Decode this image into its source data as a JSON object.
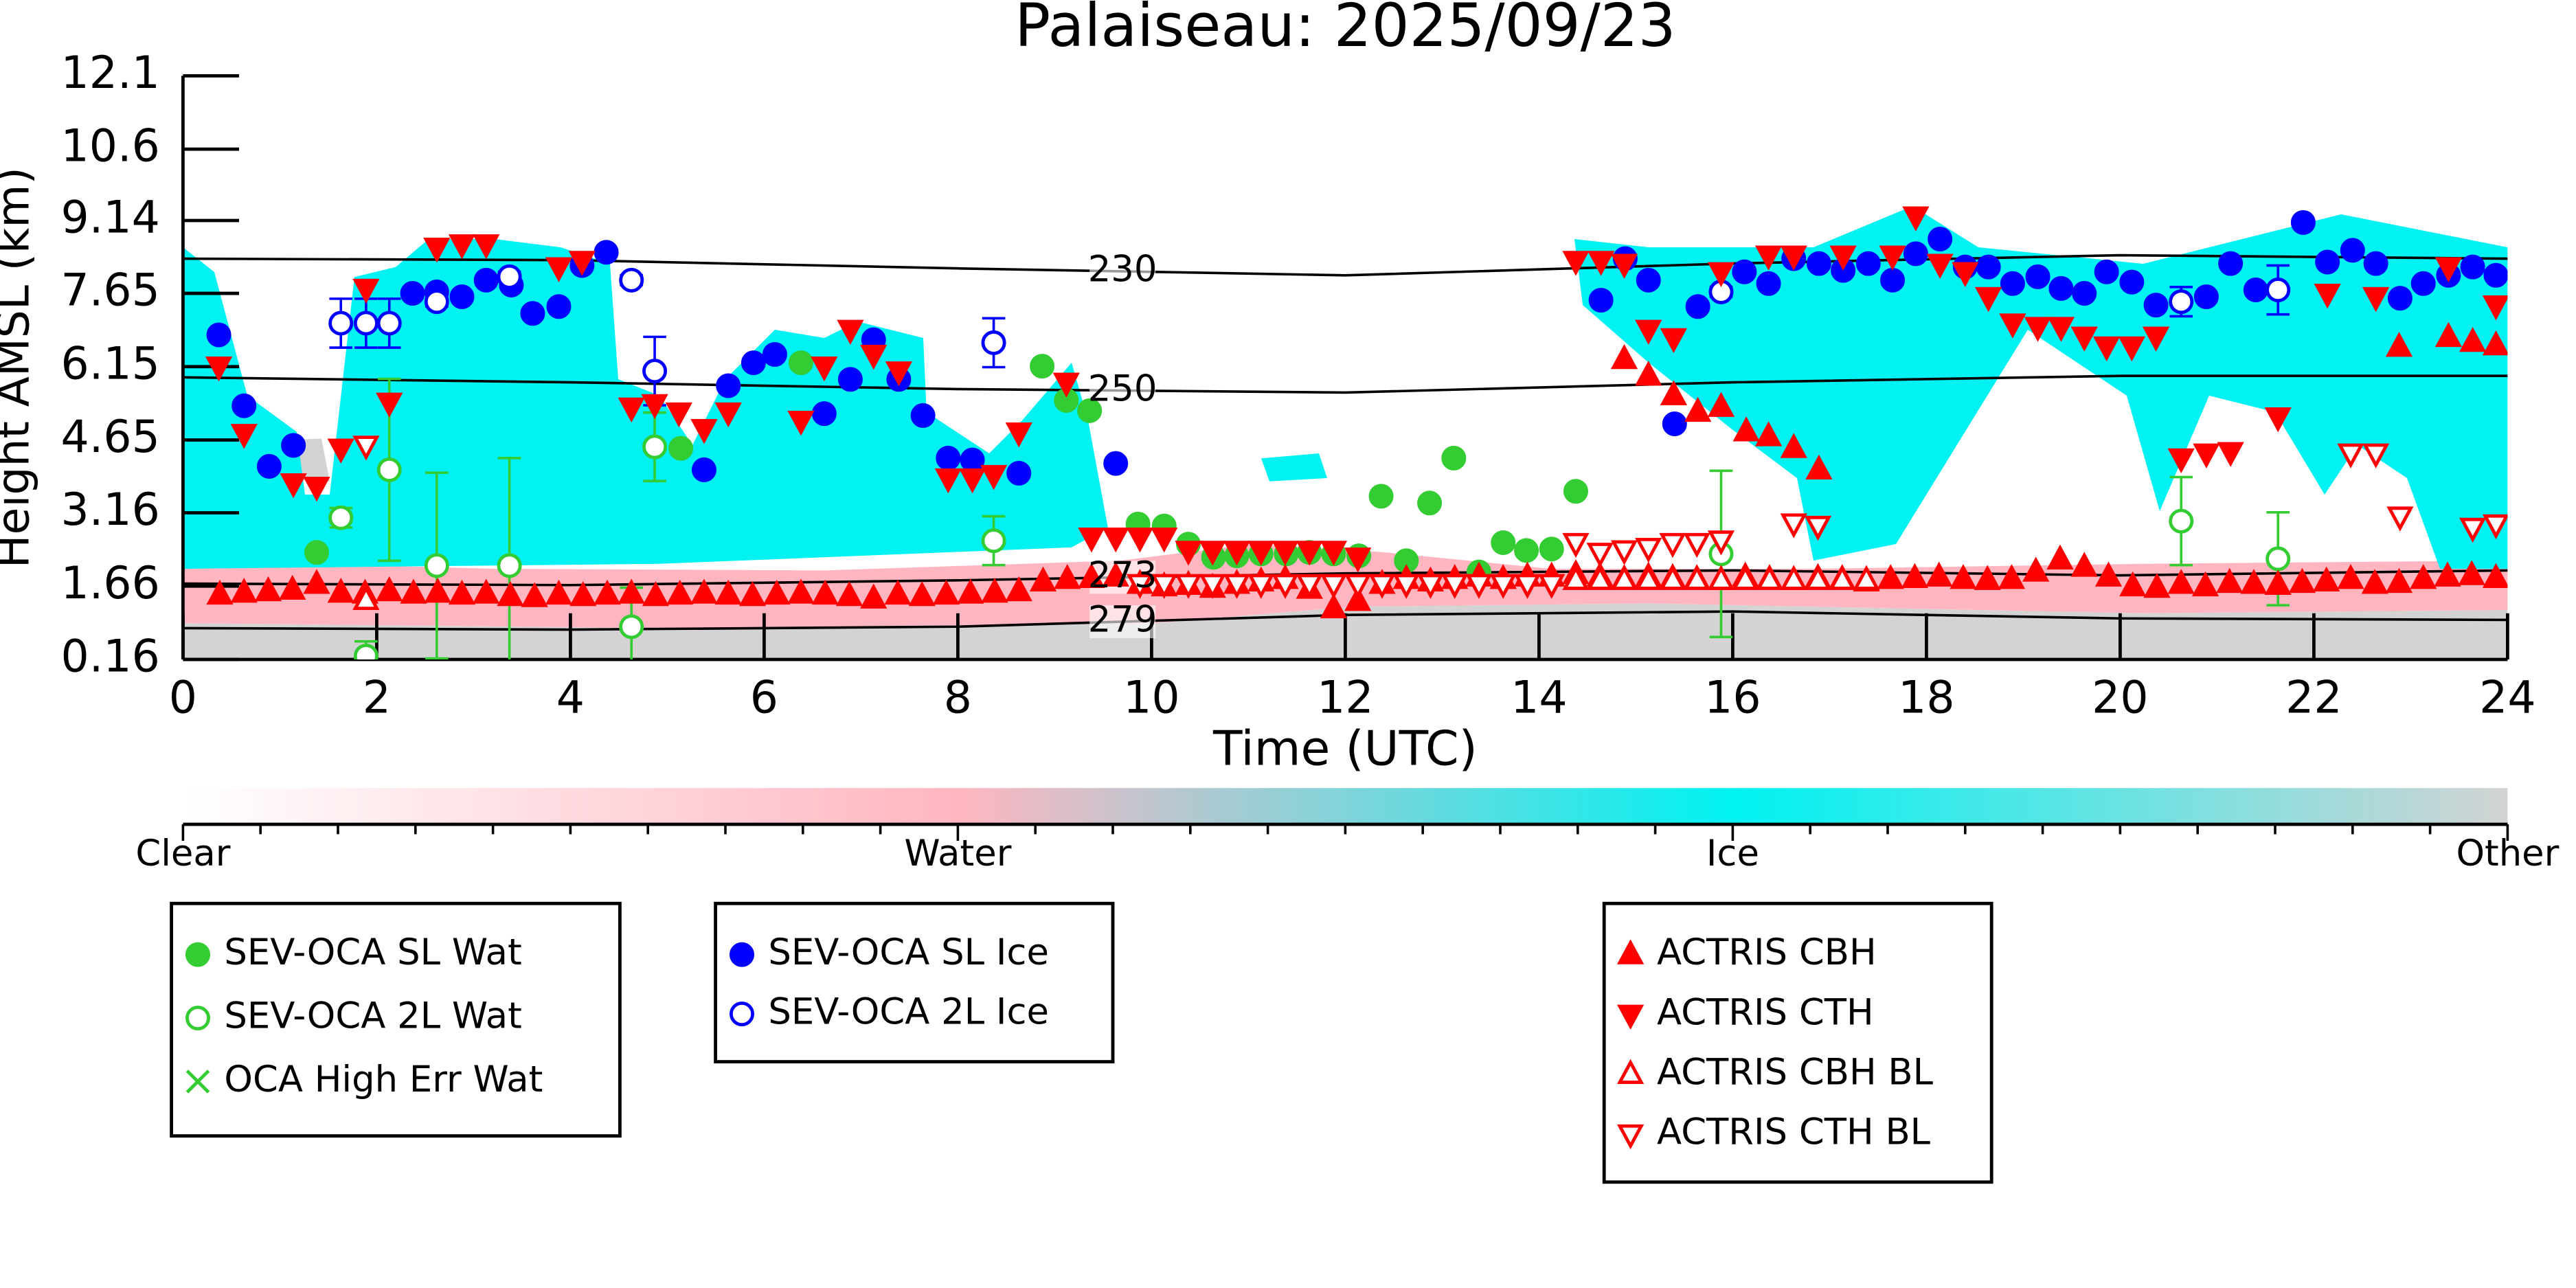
{
  "chart_data": {
    "type": "scatter",
    "title": "Palaiseau: 2025/09/23",
    "xlabel": "Time (UTC)",
    "ylabel": "Height AMSL (km)",
    "xlim": [
      0,
      24
    ],
    "ylim": [
      0.16,
      12.1
    ],
    "xticks": [
      0,
      2,
      4,
      6,
      8,
      10,
      12,
      14,
      16,
      18,
      20,
      22,
      24
    ],
    "yticks": [
      0.16,
      1.66,
      3.16,
      4.65,
      6.15,
      7.65,
      9.14,
      10.6,
      12.1
    ],
    "colorbar": {
      "labels": [
        "Clear",
        "Water",
        "Ice",
        "Other"
      ],
      "colors": [
        "#ffffff",
        "#ffb6c1",
        "#00f2f2",
        "#d3d3d3"
      ]
    },
    "contours": [
      {
        "label": "230",
        "x": [
          0,
          4,
          8,
          12,
          16,
          20,
          24
        ],
        "y": [
          8.36,
          8.33,
          8.16,
          8.02,
          8.26,
          8.43,
          8.36
        ]
      },
      {
        "label": "250",
        "x": [
          0,
          4,
          8,
          12,
          16,
          20,
          24
        ],
        "y": [
          5.93,
          5.83,
          5.69,
          5.62,
          5.83,
          5.96,
          5.96
        ]
      },
      {
        "label": "273",
        "x": [
          0,
          4,
          8,
          12,
          16,
          20,
          24
        ],
        "y": [
          1.71,
          1.68,
          1.78,
          1.92,
          1.98,
          1.88,
          1.98
        ]
      },
      {
        "label": "279",
        "x": [
          0,
          4,
          8,
          12,
          16,
          20,
          24
        ],
        "y": [
          0.8,
          0.77,
          0.83,
          1.07,
          1.14,
          1.0,
          0.97
        ]
      }
    ],
    "series": [
      {
        "name": "SEV-OCA SL Wat",
        "color": "#33cc33",
        "marker": "circle",
        "x": [
          1.38,
          5.14,
          6.38,
          8.87,
          9.12,
          9.36,
          9.86,
          10.13,
          10.38,
          10.64,
          10.88,
          11.13,
          11.39,
          11.63,
          11.88,
          12.14,
          12.37,
          12.63,
          12.87,
          13.12,
          13.38,
          13.63,
          13.87,
          14.13,
          14.38
        ],
        "y": [
          2.35,
          4.48,
          6.23,
          6.16,
          5.46,
          5.25,
          2.93,
          2.89,
          2.52,
          2.25,
          2.28,
          2.32,
          2.32,
          2.35,
          2.32,
          2.28,
          3.5,
          2.18,
          3.36,
          4.28,
          1.95,
          2.55,
          2.39,
          2.42,
          3.6
        ]
      },
      {
        "name": "SEV-OCA 2L Wat",
        "color": "#33cc33",
        "marker": "open-circle",
        "x": [
          1.63,
          1.89,
          2.13,
          2.62,
          3.37,
          4.63,
          4.87,
          8.37,
          15.88,
          20.63,
          21.63
        ],
        "y": [
          3.06,
          0.23,
          4.04,
          2.08,
          2.08,
          0.83,
          4.51,
          2.59,
          2.32,
          2.99,
          2.22
        ],
        "yerr": [
          0.2,
          0.3,
          1.86,
          1.9,
          2.2,
          0.8,
          0.7,
          0.5,
          1.7,
          0.9,
          0.95
        ]
      },
      {
        "name": "OCA High Err Wat",
        "color": "#33cc33",
        "marker": "x",
        "x": [],
        "y": []
      },
      {
        "name": "SEV-OCA SL Ice",
        "color": "#0000ff",
        "marker": "circle",
        "x": [
          0.37,
          0.63,
          0.89,
          1.14,
          2.37,
          2.62,
          2.88,
          3.13,
          3.39,
          3.61,
          3.88,
          4.12,
          4.37,
          5.38,
          5.63,
          5.89,
          6.11,
          6.62,
          6.89,
          7.13,
          7.39,
          7.64,
          7.9,
          8.15,
          8.63,
          9.63,
          14.64,
          14.89,
          15.13,
          15.4,
          15.64,
          16.12,
          16.37,
          16.63,
          16.89,
          17.14,
          17.4,
          17.65,
          17.89,
          18.14,
          18.4,
          18.64,
          18.89,
          19.15,
          19.39,
          19.63,
          19.86,
          20.12,
          20.37,
          20.89,
          21.14,
          21.4,
          21.89,
          22.14,
          22.4,
          22.64,
          22.89,
          23.13,
          23.39,
          23.64,
          23.88
        ],
        "y": [
          6.8,
          5.35,
          4.11,
          4.54,
          7.65,
          7.68,
          7.58,
          7.92,
          7.82,
          7.24,
          7.38,
          8.22,
          8.49,
          4.04,
          5.76,
          6.23,
          6.4,
          5.19,
          5.89,
          6.7,
          5.89,
          5.15,
          4.28,
          4.24,
          3.97,
          4.17,
          7.51,
          8.36,
          7.92,
          4.98,
          7.38,
          8.09,
          7.85,
          8.36,
          8.26,
          8.12,
          8.26,
          7.92,
          8.46,
          8.76,
          8.19,
          8.19,
          7.85,
          7.99,
          7.75,
          7.65,
          8.09,
          7.88,
          7.41,
          7.58,
          8.26,
          7.72,
          9.1,
          8.29,
          8.53,
          8.26,
          7.55,
          7.85,
          8.02,
          8.19,
          8.02
        ]
      },
      {
        "name": "SEV-OCA 2L Ice",
        "color": "#0000ff",
        "marker": "open-circle",
        "x": [
          1.63,
          1.89,
          2.13,
          2.62,
          3.37,
          4.63,
          4.87,
          8.37,
          15.88,
          20.63,
          21.63
        ],
        "y": [
          7.04,
          7.04,
          7.04,
          7.48,
          7.99,
          7.92,
          6.06,
          6.64,
          7.68,
          7.48,
          7.72
        ],
        "yerr": [
          0.5,
          0.5,
          0.5,
          0.1,
          0.1,
          0.1,
          0.7,
          0.5,
          0.1,
          0.3,
          0.5
        ]
      },
      {
        "name": "ACTRIS CBH",
        "color": "#ff0000",
        "marker": "triangle-up",
        "x": [
          0.38,
          0.63,
          0.88,
          1.13,
          1.38,
          1.63,
          1.88,
          2.13,
          2.38,
          2.63,
          2.88,
          3.13,
          3.38,
          3.63,
          3.88,
          4.13,
          4.38,
          4.63,
          4.88,
          5.13,
          5.38,
          5.63,
          5.88,
          6.13,
          6.38,
          6.63,
          6.88,
          7.13,
          7.38,
          7.63,
          7.88,
          8.13,
          8.38,
          8.63,
          8.88,
          9.13,
          9.38,
          9.63,
          9.88,
          10.13,
          10.38,
          10.63,
          10.88,
          11.13,
          11.38,
          11.63,
          11.88,
          12.13,
          12.38,
          12.63,
          12.88,
          13.13,
          13.38,
          13.63,
          13.88,
          14.13,
          14.38,
          14.63,
          14.88,
          15.13,
          15.38,
          15.63,
          15.88,
          16.13,
          16.38,
          16.63,
          16.88,
          17.13,
          17.38,
          17.63,
          17.88,
          18.13,
          18.38,
          18.63,
          18.88,
          19.13,
          19.38,
          19.63,
          19.88,
          20.13,
          20.38,
          20.63,
          20.88,
          21.13,
          21.38,
          21.63,
          21.88,
          22.13,
          22.38,
          22.63,
          22.88,
          23.13,
          23.38,
          23.63,
          23.88,
          14.88,
          15.13,
          15.39,
          15.64,
          15.88,
          16.14,
          16.37,
          16.63,
          16.89,
          22.88,
          23.39,
          23.64,
          23.88
        ],
        "y": [
          1.48,
          1.52,
          1.55,
          1.58,
          1.7,
          1.52,
          1.5,
          1.55,
          1.5,
          1.52,
          1.48,
          1.5,
          1.45,
          1.43,
          1.48,
          1.45,
          1.48,
          1.5,
          1.45,
          1.48,
          1.5,
          1.48,
          1.45,
          1.48,
          1.5,
          1.48,
          1.45,
          1.4,
          1.48,
          1.45,
          1.48,
          1.5,
          1.52,
          1.55,
          1.75,
          1.8,
          1.82,
          1.85,
          1.7,
          1.65,
          1.68,
          1.62,
          1.7,
          1.75,
          1.8,
          1.6,
          1.2,
          1.35,
          1.7,
          1.8,
          1.75,
          1.8,
          1.85,
          1.8,
          1.85,
          1.85,
          1.9,
          1.85,
          1.8,
          1.85,
          1.82,
          1.8,
          1.78,
          1.85,
          1.8,
          1.78,
          1.82,
          1.8,
          1.75,
          1.8,
          1.82,
          1.85,
          1.8,
          1.78,
          1.8,
          1.95,
          2.2,
          2.05,
          1.85,
          1.65,
          1.62,
          1.7,
          1.65,
          1.72,
          1.7,
          1.68,
          1.72,
          1.75,
          1.8,
          1.7,
          1.72,
          1.8,
          1.85,
          1.88,
          1.82,
          6.3,
          5.96,
          5.56,
          5.22,
          5.32,
          4.82,
          4.72,
          4.48,
          4.04,
          6.55,
          6.75,
          6.65,
          6.58
        ]
      },
      {
        "name": "ACTRIS CTH",
        "color": "#ff0000",
        "marker": "triangle-down",
        "x": [
          0.37,
          0.63,
          1.14,
          1.38,
          1.63,
          1.89,
          2.13,
          2.62,
          2.88,
          3.13,
          3.88,
          4.12,
          4.63,
          4.87,
          5.12,
          5.38,
          5.63,
          6.38,
          6.62,
          6.89,
          7.13,
          7.39,
          7.9,
          8.15,
          8.37,
          8.63,
          9.12,
          9.38,
          9.63,
          9.88,
          10.13,
          10.38,
          10.63,
          10.88,
          11.13,
          11.38,
          11.63,
          11.88,
          12.13,
          14.38,
          14.64,
          14.88,
          15.13,
          15.39,
          15.88,
          16.37,
          16.63,
          17.14,
          17.65,
          17.89,
          18.14,
          18.4,
          18.64,
          18.89,
          19.15,
          19.39,
          19.63,
          19.86,
          20.12,
          20.37,
          20.63,
          20.89,
          21.14,
          21.63,
          22.14,
          22.64,
          23.39,
          23.88
        ],
        "y": [
          6.16,
          4.78,
          3.77,
          3.7,
          4.48,
          7.75,
          5.42,
          8.59,
          8.66,
          8.66,
          8.19,
          8.32,
          5.32,
          5.39,
          5.22,
          4.88,
          5.22,
          5.05,
          6.16,
          6.91,
          6.4,
          6.06,
          3.87,
          3.87,
          3.94,
          4.81,
          5.83,
          2.66,
          2.66,
          2.66,
          2.66,
          2.39,
          2.39,
          2.39,
          2.39,
          2.39,
          2.39,
          2.39,
          2.25,
          8.32,
          8.32,
          8.26,
          6.91,
          6.74,
          8.09,
          8.43,
          8.43,
          8.43,
          8.43,
          9.23,
          8.26,
          8.09,
          7.58,
          7.04,
          6.97,
          6.97,
          6.77,
          6.57,
          6.57,
          6.77,
          4.28,
          4.38,
          4.41,
          5.12,
          7.65,
          7.58,
          8.19,
          7.41
        ]
      },
      {
        "name": "ACTRIS CBH BL",
        "color": "#ff0000",
        "marker": "open-triangle-up",
        "x": [
          1.89,
          14.38,
          14.63,
          14.88,
          15.13,
          15.38,
          15.63,
          15.88,
          16.13,
          16.38,
          16.63,
          16.88,
          17.13,
          17.38
        ],
        "y": [
          1.37,
          1.78,
          1.78,
          1.78,
          1.78,
          1.78,
          1.78,
          1.78,
          1.78,
          1.78,
          1.78,
          1.78,
          1.78,
          1.78
        ]
      },
      {
        "name": "ACTRIS CTH BL",
        "color": "#ff0000",
        "marker": "open-triangle-down",
        "x": [
          1.89,
          9.88,
          10.13,
          10.38,
          10.63,
          10.88,
          11.13,
          11.38,
          11.63,
          11.88,
          12.13,
          12.38,
          12.63,
          12.88,
          13.13,
          13.38,
          13.63,
          13.88,
          14.13,
          14.38,
          14.63,
          14.88,
          15.13,
          15.38,
          15.63,
          15.88,
          16.63,
          16.88,
          22.38,
          22.64,
          22.89,
          23.64,
          23.88
        ],
        "y": [
          4.54,
          1.71,
          1.71,
          1.71,
          1.71,
          1.71,
          1.71,
          1.71,
          1.71,
          1.71,
          1.71,
          1.71,
          1.71,
          1.71,
          1.71,
          1.71,
          1.71,
          1.71,
          1.71,
          2.55,
          2.35,
          2.4,
          2.45,
          2.55,
          2.55,
          2.6,
          2.95,
          2.9,
          4.38,
          4.38,
          3.09,
          2.86,
          2.93
        ]
      }
    ]
  }
}
